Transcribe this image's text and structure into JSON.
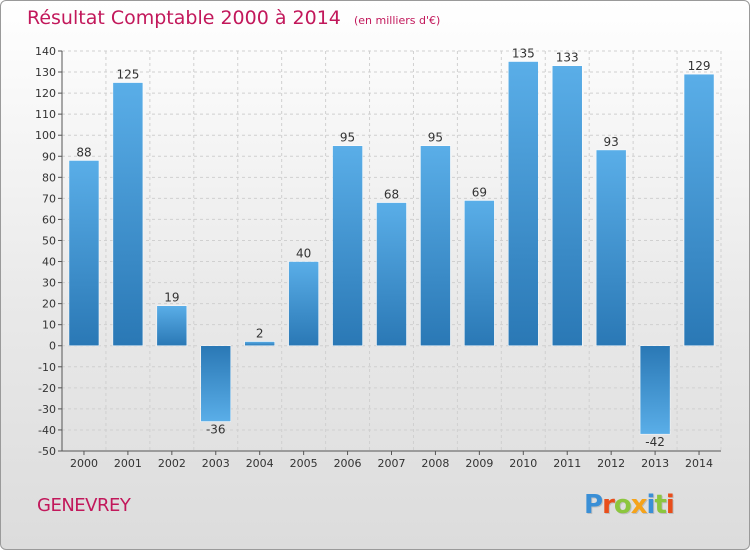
{
  "title": "Résultat Comptable 2000 à 2014",
  "subtitle": "(en milliers d'€)",
  "location": "GENEVREY",
  "logo": {
    "text": "Proxiti",
    "letters": [
      {
        "ch": "P",
        "color": "#3a8fd6"
      },
      {
        "ch": "r",
        "color": "#e84e1b"
      },
      {
        "ch": "o",
        "color": "#8cc63e"
      },
      {
        "ch": "x",
        "color": "#f5a31a"
      },
      {
        "ch": "i",
        "color": "#3a8fd6"
      },
      {
        "ch": "t",
        "color": "#8cc63e"
      },
      {
        "ch": "i",
        "color": "#e84e1b"
      }
    ]
  },
  "colors": {
    "title": "#c2185b",
    "bar_light": "#5aaee8",
    "bar_dark": "#2a78b5",
    "grid": "#d0d0d0",
    "axis_text": "#333333"
  },
  "chart_data": {
    "type": "bar",
    "categories": [
      "2000",
      "2001",
      "2002",
      "2003",
      "2004",
      "2005",
      "2006",
      "2007",
      "2008",
      "2009",
      "2010",
      "2011",
      "2012",
      "2013",
      "2014"
    ],
    "values": [
      88,
      125,
      19,
      -36,
      2,
      40,
      95,
      68,
      95,
      69,
      135,
      133,
      93,
      -42,
      129
    ],
    "data_labels": [
      "88",
      "125",
      "19",
      "-36",
      "2",
      "40",
      "95",
      "68",
      "95",
      "69",
      "135",
      "133",
      "93",
      "-42",
      "129"
    ],
    "ylim": [
      -50,
      140
    ],
    "ytick_step": 10,
    "yticks": [
      "140",
      "130",
      "120",
      "110",
      "100",
      "90",
      "80",
      "70",
      "60",
      "50",
      "40",
      "30",
      "20",
      "10",
      "0",
      "-10",
      "-20",
      "-30",
      "-40",
      "-50"
    ],
    "grid": "horizontal-dashed",
    "legend": "none"
  }
}
